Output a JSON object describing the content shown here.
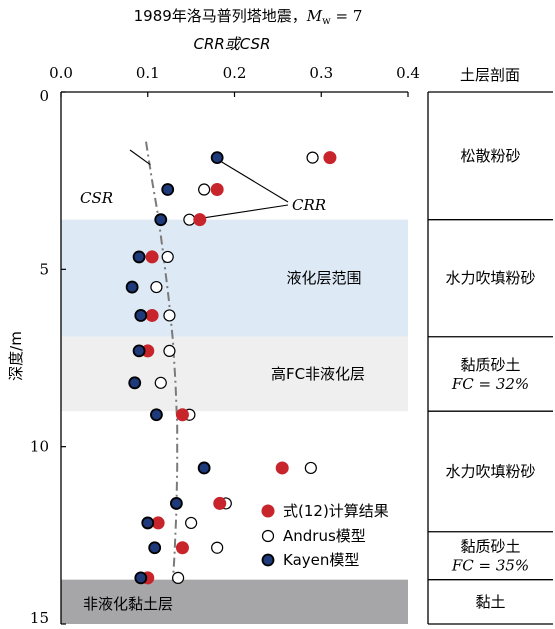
{
  "chart_data": {
    "type": "scatter",
    "title_line1": "1989年洛马普列塔地震，",
    "title_mw": "M",
    "title_mw_sub": "w",
    "title_mw_value": " = 7",
    "xlabel": "CRR或CSR",
    "ylabel": "深度/m",
    "xlim": [
      0,
      0.4
    ],
    "ylim": [
      0,
      15
    ],
    "x_ticks": [
      "0.0",
      "0.1",
      "0.2",
      "0.3",
      "0.4"
    ],
    "x_tick_values": [
      0,
      0.1,
      0.2,
      0.3,
      0.4
    ],
    "y_ticks": [
      "0",
      "5",
      "10",
      "15"
    ],
    "y_tick_values": [
      0,
      5,
      10,
      15
    ],
    "series": [
      {
        "name": "式(12)计算结果",
        "marker": "filled-red",
        "color": "#c8242c",
        "points": [
          [
            0.31,
            1.85
          ],
          [
            0.18,
            2.75
          ],
          [
            0.16,
            3.6
          ],
          [
            0.105,
            4.65
          ],
          [
            0.105,
            6.3
          ],
          [
            0.1,
            7.3
          ],
          [
            0.14,
            9.1
          ],
          [
            0.255,
            10.6
          ],
          [
            0.183,
            11.6
          ],
          [
            0.112,
            12.15
          ],
          [
            0.14,
            12.85
          ],
          [
            0.1,
            13.7
          ]
        ]
      },
      {
        "name": "Andrus模型",
        "marker": "open-circle",
        "color": "#000000",
        "points": [
          [
            0.29,
            1.85
          ],
          [
            0.165,
            2.75
          ],
          [
            0.148,
            3.6
          ],
          [
            0.123,
            4.65
          ],
          [
            0.11,
            5.5
          ],
          [
            0.125,
            6.3
          ],
          [
            0.125,
            7.3
          ],
          [
            0.115,
            8.2
          ],
          [
            0.148,
            9.1
          ],
          [
            0.288,
            10.6
          ],
          [
            0.19,
            11.6
          ],
          [
            0.15,
            12.15
          ],
          [
            0.18,
            12.85
          ],
          [
            0.135,
            13.7
          ]
        ]
      },
      {
        "name": "Kayen模型",
        "marker": "filled-navy",
        "color": "#1f3a7a",
        "points": [
          [
            0.18,
            1.85
          ],
          [
            0.123,
            2.75
          ],
          [
            0.115,
            3.6
          ],
          [
            0.09,
            4.65
          ],
          [
            0.082,
            5.5
          ],
          [
            0.092,
            6.3
          ],
          [
            0.09,
            7.3
          ],
          [
            0.085,
            8.2
          ],
          [
            0.11,
            9.1
          ],
          [
            0.165,
            10.6
          ],
          [
            0.133,
            11.6
          ],
          [
            0.1,
            12.15
          ],
          [
            0.108,
            12.85
          ],
          [
            0.092,
            13.7
          ]
        ]
      }
    ],
    "csr_curve": [
      [
        0.098,
        1.4
      ],
      [
        0.105,
        2.5
      ],
      [
        0.112,
        3.5
      ],
      [
        0.118,
        4.6
      ],
      [
        0.124,
        5.8
      ],
      [
        0.129,
        7.0
      ],
      [
        0.132,
        8.2
      ],
      [
        0.134,
        9.4
      ],
      [
        0.134,
        10.6
      ],
      [
        0.133,
        11.8
      ],
      [
        0.131,
        13.0
      ],
      [
        0.129,
        13.8
      ]
    ],
    "csr_label": "CSR",
    "crr_label": "CRR",
    "bands": [
      {
        "label": "液化层范围",
        "from": 3.6,
        "to": 6.9,
        "color": "#dde9f5"
      },
      {
        "label": "高FC非液化层",
        "from": 6.9,
        "to": 9.0,
        "color": "#efefef"
      },
      {
        "label": "非液化黏土层",
        "from": 13.75,
        "to": 15.0,
        "color": "#a6a6a8"
      }
    ],
    "strata_title": "土层剖面",
    "strata": [
      {
        "from": 0,
        "to": 3.6,
        "name": "松散粉砂",
        "fc": ""
      },
      {
        "from": 3.6,
        "to": 6.9,
        "name": "水力吹填粉砂",
        "fc": ""
      },
      {
        "from": 6.9,
        "to": 9.0,
        "name": "黏质砂土",
        "fc": "FC = 32%"
      },
      {
        "from": 9.0,
        "to": 12.4,
        "name": "水力吹填粉砂",
        "fc": ""
      },
      {
        "from": 12.4,
        "to": 13.75,
        "name": "黏质砂土",
        "fc": "FC = 35%"
      },
      {
        "from": 13.75,
        "to": 15.0,
        "name": "黏土",
        "fc": ""
      }
    ]
  }
}
